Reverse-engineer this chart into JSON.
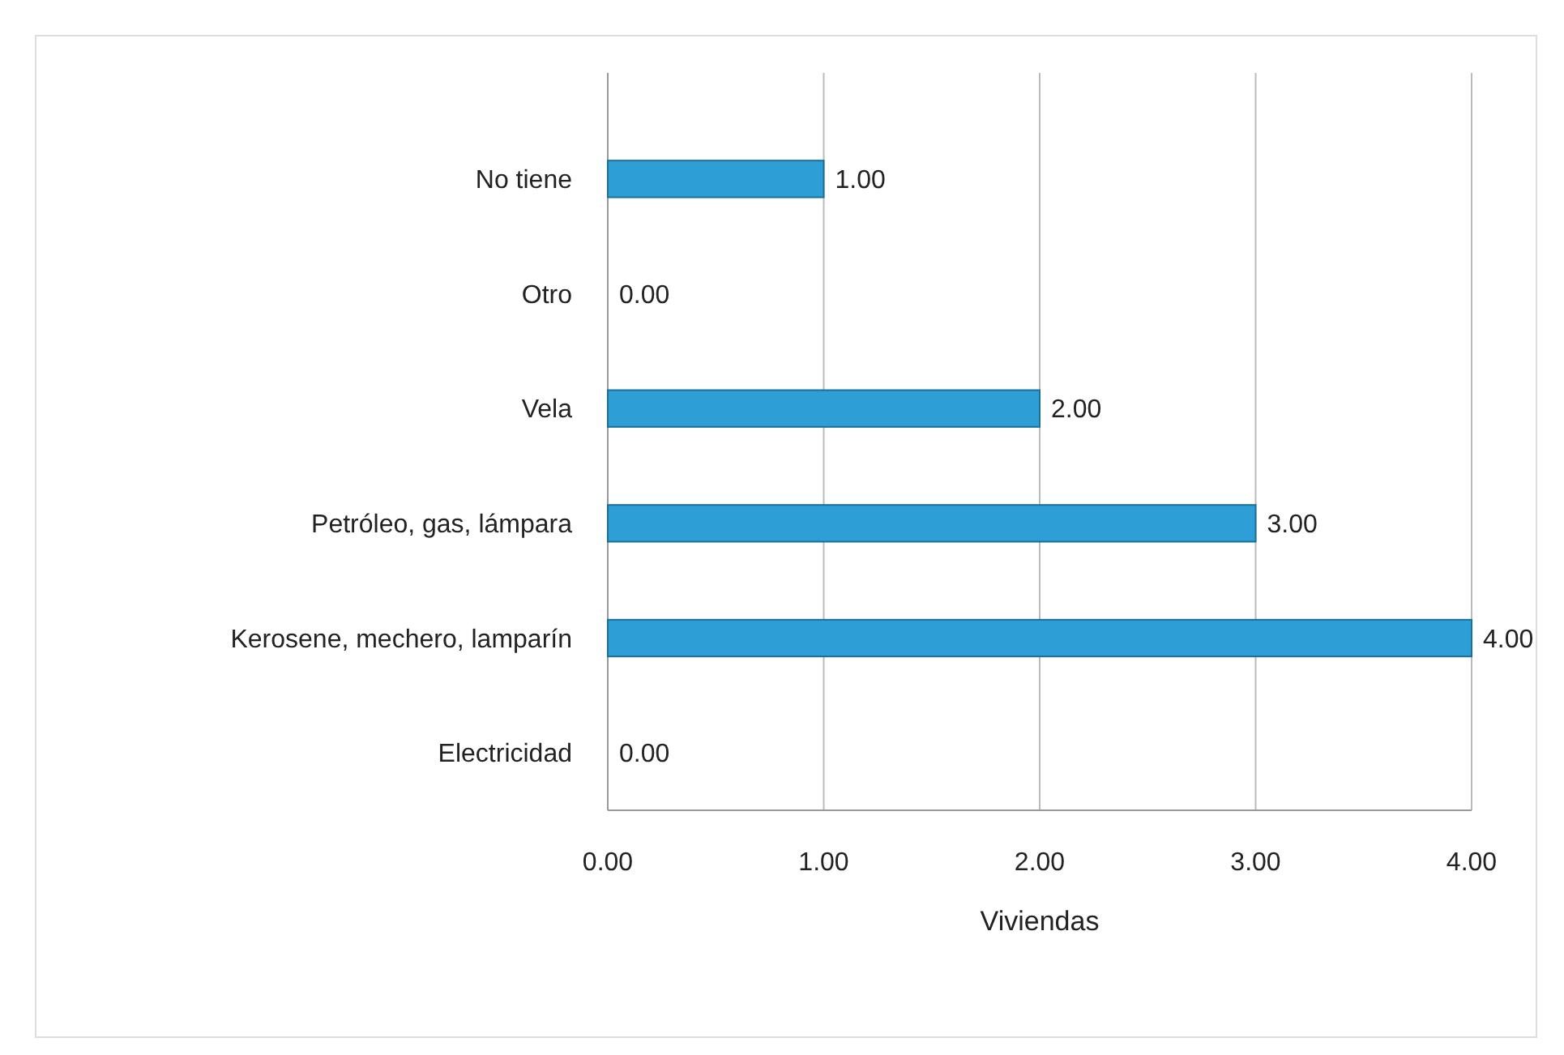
{
  "chart_data": {
    "type": "bar",
    "orientation": "horizontal",
    "xlabel": "Viviendas",
    "categories": [
      "No tiene",
      "Otro",
      "Vela",
      "Petróleo, gas, lámpara",
      "Kerosene, mechero, lamparín",
      "Electricidad"
    ],
    "values": [
      1,
      0,
      2,
      3,
      4,
      0
    ],
    "value_labels": [
      "1.00",
      "0.00",
      "2.00",
      "3.00",
      "4.00",
      "0.00"
    ],
    "color": "#2e9fd6",
    "xlim": [
      0,
      4
    ],
    "xticks": [
      {
        "value": 0,
        "label": "0.00"
      },
      {
        "value": 1,
        "label": "1.00"
      },
      {
        "value": 2,
        "label": "2.00"
      },
      {
        "value": 3,
        "label": "3.00"
      },
      {
        "value": 4,
        "label": "4.00"
      }
    ],
    "grid": "x"
  }
}
